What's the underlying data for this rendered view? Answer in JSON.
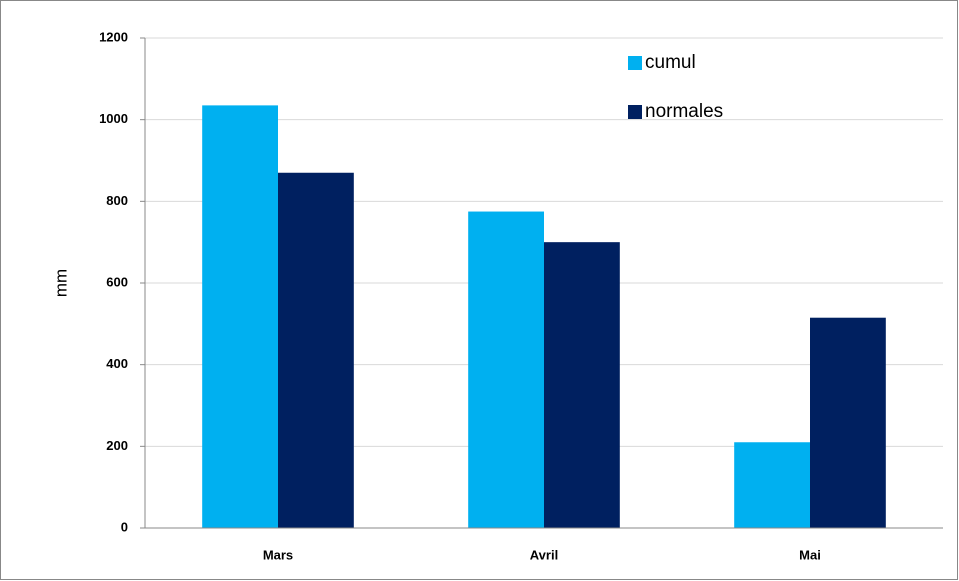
{
  "chart_data": {
    "type": "bar",
    "y_label": "mm",
    "categories": [
      "Mars",
      "Avril",
      "Mai"
    ],
    "series": [
      {
        "name": "cumul",
        "color": "#00b0f0",
        "values": [
          1035,
          775,
          210
        ]
      },
      {
        "name": "normales",
        "color": "#002060",
        "values": [
          870,
          700,
          515
        ]
      }
    ],
    "ylim": [
      0,
      1200
    ],
    "yticks": [
      0,
      200,
      400,
      600,
      800,
      1000,
      1200
    ],
    "grid": true,
    "legend": "top-right"
  }
}
